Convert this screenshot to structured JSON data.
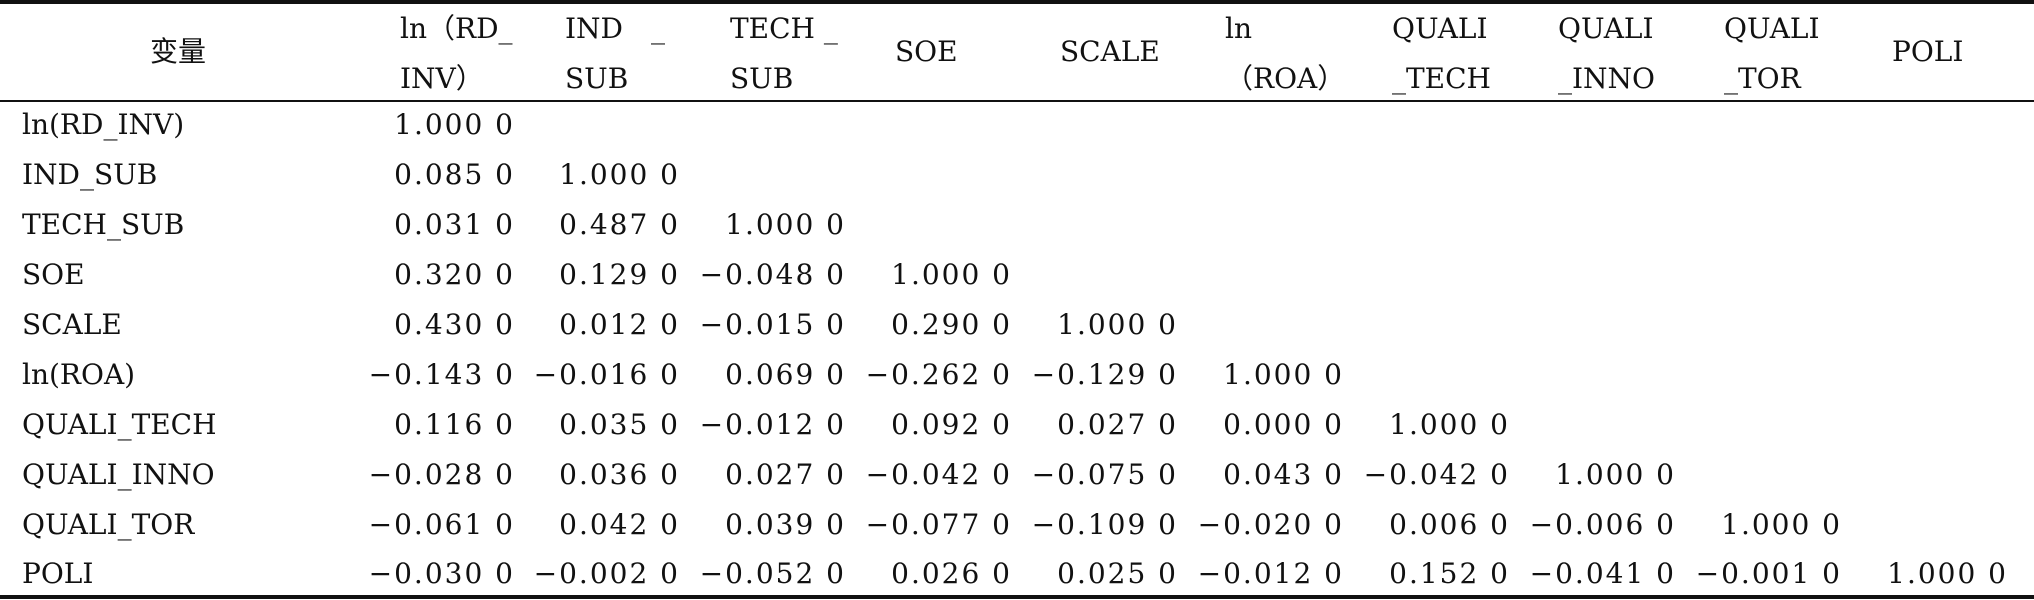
{
  "table": {
    "headers": [
      {
        "lines": [
          "变量"
        ]
      },
      {
        "lines": [
          "ln（RD_",
          "INV）"
        ]
      },
      {
        "lines": [
          "IND　_",
          "SUB"
        ]
      },
      {
        "lines": [
          "TECH _",
          "SUB"
        ]
      },
      {
        "lines": [
          "SOE"
        ]
      },
      {
        "lines": [
          "SCALE"
        ]
      },
      {
        "lines": [
          "ln",
          "（ROA）"
        ]
      },
      {
        "lines": [
          "QUALI",
          "_TECH"
        ]
      },
      {
        "lines": [
          "QUALI",
          "_INNO"
        ]
      },
      {
        "lines": [
          "QUALI",
          "_TOR"
        ]
      },
      {
        "lines": [
          "POLI"
        ]
      }
    ],
    "rows": [
      {
        "label": "ln(RD_INV)",
        "values": [
          "1.000 0"
        ]
      },
      {
        "label": "IND_SUB",
        "values": [
          "0.085 0",
          "1.000 0"
        ]
      },
      {
        "label": "TECH_SUB",
        "values": [
          "0.031 0",
          "0.487 0",
          "1.000 0"
        ]
      },
      {
        "label": "SOE",
        "values": [
          "0.320 0",
          "0.129 0",
          "−0.048 0",
          "1.000 0"
        ]
      },
      {
        "label": "SCALE",
        "values": [
          "0.430 0",
          "0.012 0",
          "−0.015 0",
          "0.290 0",
          "1.000 0"
        ]
      },
      {
        "label": "ln(ROA)",
        "values": [
          "−0.143 0",
          "−0.016 0",
          "0.069 0",
          "−0.262 0",
          "−0.129 0",
          "1.000 0"
        ]
      },
      {
        "label": "QUALI_TECH",
        "values": [
          "0.116 0",
          "0.035 0",
          "−0.012 0",
          "0.092 0",
          "0.027 0",
          "0.000 0",
          "1.000 0"
        ]
      },
      {
        "label": "QUALI_INNO",
        "values": [
          "−0.028 0",
          "0.036 0",
          "0.027 0",
          "−0.042 0",
          "−0.075 0",
          "0.043 0",
          "−0.042 0",
          "1.000 0"
        ]
      },
      {
        "label": "QUALI_TOR",
        "values": [
          "−0.061 0",
          "0.042 0",
          "0.039 0",
          "−0.077 0",
          "−0.109 0",
          "−0.020 0",
          "0.006 0",
          "−0.006 0",
          "1.000 0"
        ]
      },
      {
        "label": "POLI",
        "values": [
          "−0.030 0",
          "−0.002 0",
          "−0.052 0",
          "0.026 0",
          "0.025 0",
          "−0.012 0",
          "0.152 0",
          "−0.041 0",
          "−0.001 0",
          "1.000 0"
        ]
      }
    ]
  }
}
